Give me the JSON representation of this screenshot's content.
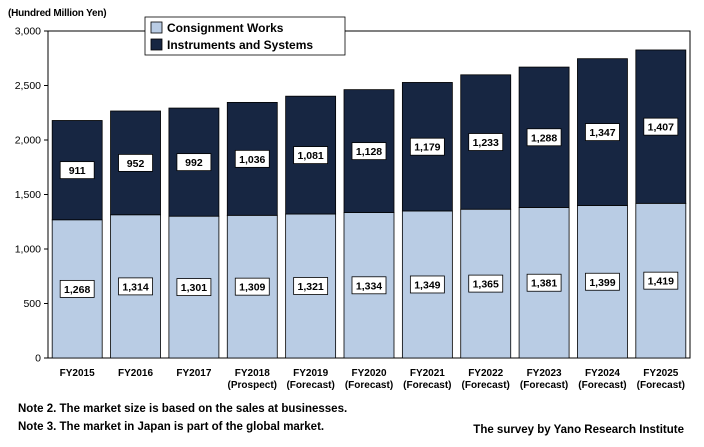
{
  "chart_data": {
    "type": "bar",
    "stacked": true,
    "unit_label": "(Hundred Million Yen)",
    "categories": [
      "FY2015",
      "FY2016",
      "FY2017",
      "FY2018",
      "FY2019",
      "FY2020",
      "FY2021",
      "FY2022",
      "FY2023",
      "FY2024",
      "FY2025"
    ],
    "category_notes": [
      "",
      "",
      "",
      "(Prospect)",
      "(Forecast)",
      "(Forecast)",
      "(Forecast)",
      "(Forecast)",
      "(Forecast)",
      "(Forecast)",
      "(Forecast)"
    ],
    "series": [
      {
        "name": "Consignment Works",
        "color": "#b9cce4",
        "values": [
          1268,
          1314,
          1301,
          1309,
          1321,
          1334,
          1349,
          1365,
          1381,
          1399,
          1419
        ],
        "labels": [
          "1,268",
          "1,314",
          "1,301",
          "1,309",
          "1,321",
          "1,334",
          "1,349",
          "1,365",
          "1,381",
          "1,399",
          "1,419"
        ]
      },
      {
        "name": "Instruments and Systems",
        "color": "#172642",
        "values": [
          911,
          952,
          992,
          1036,
          1081,
          1128,
          1179,
          1233,
          1288,
          1347,
          1407
        ],
        "labels": [
          "911",
          "952",
          "992",
          "1,036",
          "1,081",
          "1,128",
          "1,179",
          "1,233",
          "1,288",
          "1,347",
          "1,407"
        ]
      }
    ],
    "ylim": [
      0,
      3000
    ],
    "yticks": [
      0,
      500,
      1000,
      1500,
      2000,
      2500,
      3000
    ],
    "ytick_labels": [
      "0",
      "500",
      "1,000",
      "1,500",
      "2,000",
      "2,500",
      "3,000"
    ],
    "grid": false,
    "legend_position": "top-left"
  },
  "notes": [
    "Note 2. The market size is based on the sales at businesses.",
    "Note 3. The market in Japan is part of the global market."
  ],
  "source": "The survey by Yano Research Institute"
}
